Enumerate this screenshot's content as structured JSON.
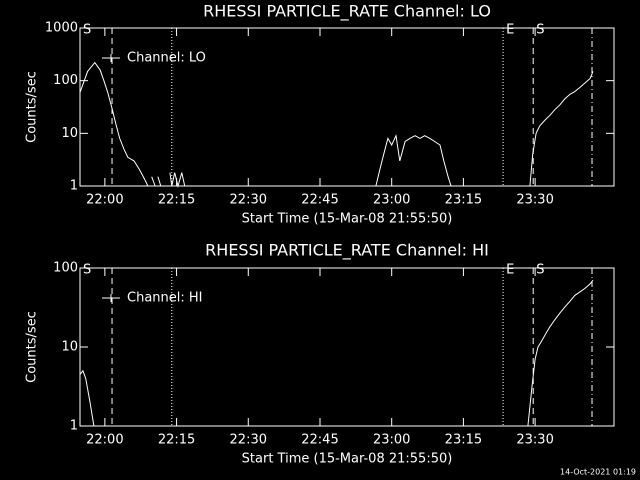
{
  "chart_data": [
    {
      "type": "line",
      "title": "RHESSI PARTICLE_RATE Channel: LO",
      "x_label": "Start Time (15-Mar-08 21:55:50)",
      "y_label": "Counts/sec",
      "log_y": true,
      "ylim": [
        1,
        1000
      ],
      "yticks": [
        1,
        10,
        100,
        1000
      ],
      "xlim": [
        1314.8,
        1426.5
      ],
      "xticks": [
        {
          "value": 1320,
          "label": "22:00"
        },
        {
          "value": 1335,
          "label": "22:15"
        },
        {
          "value": 1350,
          "label": "22:30"
        },
        {
          "value": 1365,
          "label": "22:45"
        },
        {
          "value": 1380,
          "label": "23:00"
        },
        {
          "value": 1395,
          "label": "23:15"
        },
        {
          "value": 1410,
          "label": "23:30"
        }
      ],
      "markers": [
        {
          "x": 1314.8,
          "style": "none",
          "label": "S"
        },
        {
          "x": 1321.5,
          "style": "dashed"
        },
        {
          "x": 1334.0,
          "style": "dotted"
        },
        {
          "x": 1403.3,
          "style": "dotted",
          "label": "E"
        },
        {
          "x": 1409.6,
          "style": "dashed",
          "label": "S"
        },
        {
          "x": 1421.9,
          "style": "dashdot"
        }
      ],
      "series": [
        {
          "name": "Channel: LO",
          "color": "#ffffff",
          "x": [
            1314.8,
            1316.4,
            1317.9,
            1319.0,
            1319.8,
            1320.6,
            1321.5,
            1322.3,
            1323.1,
            1324.0,
            1324.8,
            1326.1,
            1327.3,
            1328.4,
            1329.0,
            1329.4,
            1329.8,
            1330.5,
            1330.8,
            1331.1,
            1331.7,
            1332.5,
            1333.6,
            1334.0,
            1334.6,
            1335.3,
            1336.1,
            1336.7,
            1350.0,
            1376.7,
            1377.5,
            1378.6,
            1379.2,
            1380.0,
            1380.9,
            1381.7,
            1382.8,
            1383.8,
            1384.9,
            1385.9,
            1386.9,
            1388.0,
            1389.0,
            1390.1,
            1390.9,
            1391.8,
            1392.4,
            1400.0,
            1408.9,
            1409.5,
            1410.2,
            1411.0,
            1412.1,
            1413.1,
            1414.1,
            1415.2,
            1416.2,
            1417.3,
            1418.3,
            1419.4,
            1420.4,
            1421.5,
            1422.1
          ],
          "values": [
            60,
            150,
            220,
            160,
            100,
            60,
            30,
            15,
            8,
            5,
            3.5,
            3,
            2,
            1.3,
            1,
            null,
            1.5,
            1,
            null,
            1.5,
            1,
            null,
            1.8,
            1,
            1.8,
            1,
            1.8,
            1,
            null,
            1,
            2,
            5,
            8,
            6,
            9,
            3,
            7,
            8,
            9,
            8,
            9,
            8,
            7,
            6,
            3,
            1.5,
            1,
            null,
            1,
            4,
            10,
            14,
            18,
            22,
            28,
            35,
            45,
            55,
            62,
            75,
            90,
            110,
            150
          ]
        }
      ]
    },
    {
      "type": "line",
      "title": "RHESSI PARTICLE_RATE Channel: HI",
      "x_label": "Start Time (15-Mar-08 21:55:50)",
      "y_label": "Counts/sec",
      "log_y": true,
      "ylim": [
        1,
        100
      ],
      "yticks": [
        1,
        10,
        100
      ],
      "xlim": [
        1314.8,
        1426.5
      ],
      "xticks": [
        {
          "value": 1320,
          "label": "22:00"
        },
        {
          "value": 1335,
          "label": "22:15"
        },
        {
          "value": 1350,
          "label": "22:30"
        },
        {
          "value": 1365,
          "label": "22:45"
        },
        {
          "value": 1380,
          "label": "23:00"
        },
        {
          "value": 1395,
          "label": "23:15"
        },
        {
          "value": 1410,
          "label": "23:30"
        }
      ],
      "markers": [
        {
          "x": 1314.8,
          "style": "none",
          "label": "S"
        },
        {
          "x": 1321.5,
          "style": "dashed"
        },
        {
          "x": 1334.0,
          "style": "dotted"
        },
        {
          "x": 1403.3,
          "style": "dotted",
          "label": "E"
        },
        {
          "x": 1409.6,
          "style": "dashed",
          "label": "S"
        },
        {
          "x": 1421.9,
          "style": "dashdot"
        }
      ],
      "series": [
        {
          "name": "Channel: HI",
          "color": "#ffffff",
          "x": [
            1314.8,
            1315.4,
            1316.0,
            1316.9,
            1317.7,
            1360.0,
            1408.5,
            1409.3,
            1410.0,
            1410.6,
            1411.4,
            1412.3,
            1413.1,
            1414.1,
            1415.2,
            1416.2,
            1417.3,
            1418.3,
            1419.4,
            1420.4,
            1421.5,
            1422.1
          ],
          "values": [
            4.5,
            5,
            4,
            2,
            1,
            null,
            1,
            3,
            7,
            10,
            12,
            15,
            18,
            22,
            27,
            32,
            38,
            45,
            50,
            55,
            63,
            70
          ]
        }
      ]
    }
  ],
  "footer": "14-Oct-2021 01:19"
}
